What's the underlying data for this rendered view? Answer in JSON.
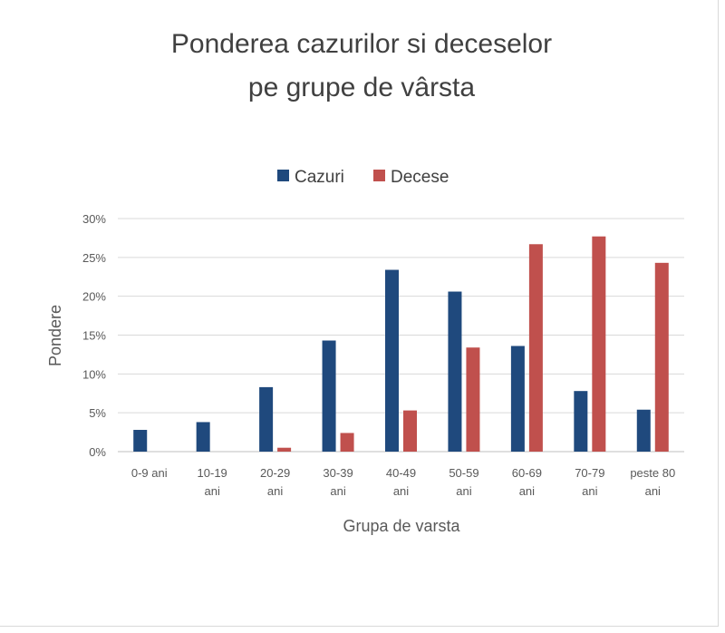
{
  "chart_data": {
    "type": "bar",
    "title_lines": [
      "Ponderea cazurilor si deceselor",
      "pe grupe de vârsta"
    ],
    "xlabel": "Grupa de varsta",
    "ylabel": "Pondere",
    "categories": [
      [
        "0-9 ani"
      ],
      [
        "10-19",
        "ani"
      ],
      [
        "20-29",
        "ani"
      ],
      [
        "30-39",
        "ani"
      ],
      [
        "40-49",
        "ani"
      ],
      [
        "50-59",
        "ani"
      ],
      [
        "60-69",
        "ani"
      ],
      [
        "70-79",
        "ani"
      ],
      [
        "peste 80",
        "ani"
      ]
    ],
    "series": [
      {
        "name": "Cazuri",
        "color": "#1f497d",
        "values": [
          2.8,
          3.8,
          8.3,
          14.3,
          23.4,
          20.6,
          13.6,
          7.8,
          5.4
        ]
      },
      {
        "name": "Decese",
        "color": "#c0504d",
        "values": [
          0.0,
          0.0,
          0.5,
          2.4,
          5.3,
          13.4,
          26.7,
          27.7,
          24.3
        ]
      }
    ],
    "ylim": [
      0,
      30
    ],
    "yticks": [
      "0%",
      "5%",
      "10%",
      "15%",
      "20%",
      "25%",
      "30%"
    ],
    "ytick_values": [
      0,
      5,
      10,
      15,
      20,
      25,
      30
    ],
    "grid": true,
    "legend_position": "top-center"
  }
}
